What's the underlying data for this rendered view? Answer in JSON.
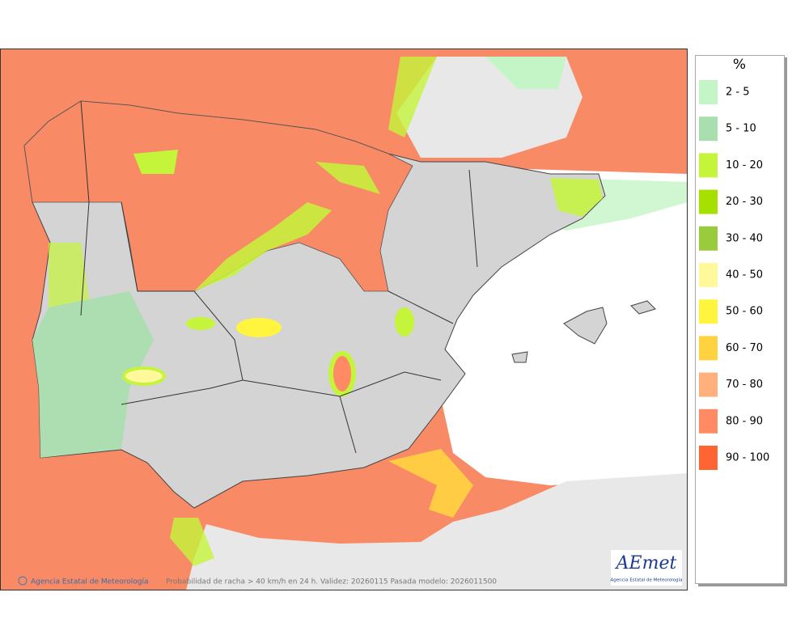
{
  "legend": {
    "title": "%",
    "items": [
      {
        "label": "2 - 5",
        "color": "#c4f5c6"
      },
      {
        "label": "5 - 10",
        "color": "#a9dfae"
      },
      {
        "label": "10 - 20",
        "color": "#c4f53a"
      },
      {
        "label": "20 - 30",
        "color": "#a6e000"
      },
      {
        "label": "30 - 40",
        "color": "#9acb3c"
      },
      {
        "label": "40 - 50",
        "color": "#fff99c"
      },
      {
        "label": "50 - 60",
        "color": "#fff53f"
      },
      {
        "label": "60 - 70",
        "color": "#ffd340"
      },
      {
        "label": "70 - 80",
        "color": "#ffb07c"
      },
      {
        "label": "80 - 90",
        "color": "#ff8a63"
      },
      {
        "label": "90 - 100",
        "color": "#ff6433"
      }
    ]
  },
  "footer": {
    "credit": "Agencia Estatal de Meteorología",
    "caption": "Probabilidad de racha > 40 km/h en 24 h. Validez: 20260115 Pasada modelo: 2026011500"
  },
  "logo": {
    "name": "AEmet",
    "subtitle": "Agencia Estatal de Meteorología"
  }
}
